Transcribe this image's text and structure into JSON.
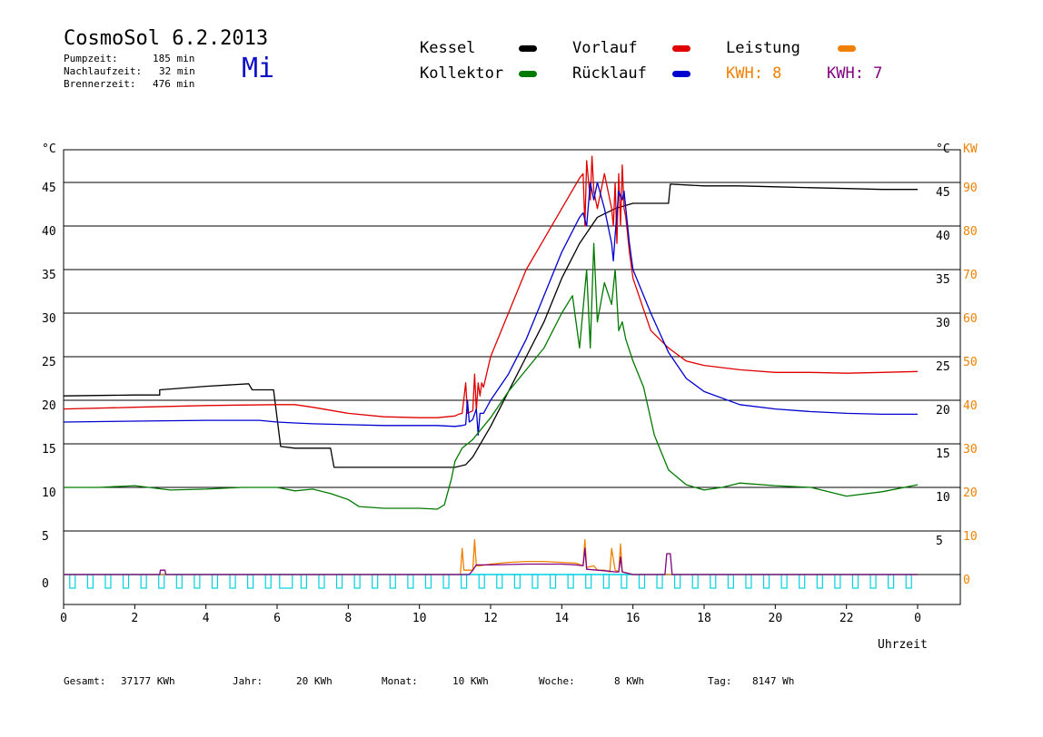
{
  "header": {
    "title": "CosmoSol 6.2.2013",
    "weekday": "Mi",
    "stats": [
      {
        "label": "Pumpzeit:",
        "value": "185 min"
      },
      {
        "label": "Nachlaufzeit:",
        "value": "32 min"
      },
      {
        "label": "Brennerzeit:",
        "value": "476 min"
      }
    ]
  },
  "legend": {
    "items": [
      {
        "label": "Kessel",
        "color": "#000000"
      },
      {
        "label": "Kollektor",
        "color": "#007a00"
      },
      {
        "label": "Vorlauf",
        "color": "#e00000"
      },
      {
        "label": "Rücklauf",
        "color": "#0000d0"
      },
      {
        "label": "Leistung",
        "color": "#f08000"
      }
    ],
    "kwh": [
      {
        "text": "KWH: 8",
        "color": "#f08000"
      },
      {
        "text": "KWH: 7",
        "color": "#800080"
      }
    ]
  },
  "footer": [
    {
      "label": "Gesamt:",
      "value": "37177 KWh"
    },
    {
      "label": "Jahr:",
      "value": "20 KWh"
    },
    {
      "label": "Monat:",
      "value": "10 KWh"
    },
    {
      "label": "Woche:",
      "value": "8 KWh"
    },
    {
      "label": "Tag:",
      "value": "8147 Wh"
    }
  ],
  "chart_data": {
    "type": "line",
    "xlabel": "Uhrzeit",
    "ylabel_left": "°C",
    "ylabel_right": [
      "°C",
      "KW"
    ],
    "xlim": [
      0,
      24
    ],
    "ylim": [
      -3.5,
      49
    ],
    "x_ticks": [
      "0",
      "2",
      "4",
      "6",
      "8",
      "10",
      "12",
      "14",
      "16",
      "18",
      "20",
      "22",
      "0"
    ],
    "y_ticks_left": [
      0,
      5,
      10,
      15,
      20,
      25,
      30,
      35,
      40,
      45
    ],
    "y_ticks_right_c": [
      5,
      10,
      15,
      20,
      25,
      30,
      35,
      40,
      45
    ],
    "y_ticks_right_kw": [
      0,
      10,
      20,
      30,
      40,
      50,
      60,
      70,
      80,
      90
    ],
    "grid": true,
    "series": [
      {
        "name": "Kessel",
        "color": "#000000",
        "x": [
          0,
          2,
          2.7,
          2.7,
          4,
          5.2,
          5.3,
          5.9,
          6.1,
          6.5,
          7.5,
          7.6,
          8,
          9,
          10,
          10.5,
          11,
          11.3,
          11.5,
          12,
          12.5,
          13,
          13.5,
          14,
          14.5,
          15,
          15.5,
          16,
          17,
          17.05,
          18,
          19,
          20,
          21,
          22,
          23,
          24
        ],
        "y": [
          20.5,
          20.6,
          20.6,
          21.2,
          21.6,
          21.9,
          21.2,
          21.2,
          14.7,
          14.5,
          14.5,
          12.3,
          12.3,
          12.3,
          12.3,
          12.3,
          12.3,
          12.6,
          13.5,
          17,
          21,
          25,
          29,
          34,
          38,
          41,
          42,
          42.6,
          42.6,
          44.8,
          44.6,
          44.6,
          44.5,
          44.4,
          44.3,
          44.2,
          44.2
        ]
      },
      {
        "name": "Vorlauf",
        "color": "#e00000",
        "x": [
          0,
          2,
          4,
          6,
          6.5,
          7,
          8,
          9,
          10,
          10.5,
          11,
          11.1,
          11.2,
          11.3,
          11.35,
          11.4,
          11.5,
          11.55,
          11.6,
          11.65,
          11.7,
          11.75,
          11.8,
          12,
          12.5,
          13,
          13.5,
          14,
          14.5,
          14.6,
          14.65,
          14.7,
          14.8,
          14.85,
          14.9,
          15,
          15.2,
          15.4,
          15.45,
          15.5,
          15.55,
          15.6,
          15.65,
          15.7,
          15.75,
          15.8,
          15.9,
          16,
          16.5,
          17,
          17.5,
          18,
          19,
          20,
          21,
          22,
          23,
          24
        ],
        "y": [
          19,
          19.2,
          19.4,
          19.5,
          19.5,
          19.2,
          18.5,
          18.1,
          18,
          18,
          18.2,
          18.4,
          18.5,
          22,
          18.5,
          18.6,
          18.8,
          23,
          18.8,
          22,
          20.5,
          22,
          21.5,
          25,
          30,
          35,
          38.5,
          42,
          45.5,
          46,
          40,
          47.5,
          43,
          48,
          44,
          42,
          46,
          42,
          40,
          45,
          38,
          46,
          40,
          47,
          42,
          41,
          37,
          34,
          28,
          26,
          24.5,
          24,
          23.5,
          23.2,
          23.2,
          23.1,
          23.2,
          23.3
        ]
      },
      {
        "name": "Rücklauf",
        "color": "#0000d0",
        "x": [
          0,
          2,
          4,
          5.5,
          6,
          6.5,
          7,
          8,
          9,
          10,
          10.5,
          11,
          11.2,
          11.3,
          11.35,
          11.4,
          11.5,
          11.6,
          11.65,
          11.7,
          11.8,
          12,
          12.5,
          13,
          13.5,
          14,
          14.5,
          14.6,
          14.7,
          14.8,
          14.9,
          15,
          15.2,
          15.4,
          15.45,
          15.5,
          15.6,
          15.7,
          15.75,
          15.8,
          15.9,
          16,
          16.5,
          17,
          17.5,
          18,
          19,
          20,
          21,
          22,
          23,
          24
        ],
        "y": [
          17.5,
          17.6,
          17.7,
          17.7,
          17.5,
          17.4,
          17.3,
          17.2,
          17.1,
          17.1,
          17.1,
          17,
          17.1,
          17.2,
          20,
          17.5,
          17.8,
          19,
          16,
          18.5,
          18.5,
          20,
          23,
          27,
          32,
          37,
          41,
          41.5,
          40,
          45,
          43,
          45,
          42,
          38,
          36,
          39,
          44,
          43,
          44,
          42,
          38,
          35,
          30,
          25.5,
          22.5,
          21,
          19.5,
          19,
          18.7,
          18.5,
          18.4,
          18.4
        ]
      },
      {
        "name": "Kollektor",
        "color": "#007a00",
        "x": [
          0,
          1,
          2,
          3,
          4,
          5,
          6,
          6.5,
          7,
          7.5,
          8,
          8.3,
          9,
          10,
          10.5,
          10.7,
          10.9,
          11,
          11.2,
          11.5,
          12,
          12.5,
          13,
          13.5,
          14,
          14.3,
          14.5,
          14.7,
          14.8,
          14.9,
          15,
          15.2,
          15.4,
          15.5,
          15.6,
          15.7,
          15.8,
          16,
          16.3,
          16.6,
          17,
          17.5,
          18,
          18.5,
          19,
          20,
          21,
          22,
          23,
          24
        ],
        "y": [
          10,
          10,
          10.2,
          9.7,
          9.8,
          10,
          10,
          9.6,
          9.8,
          9.3,
          8.6,
          7.8,
          7.6,
          7.6,
          7.5,
          8,
          11,
          13,
          14.5,
          15.5,
          18,
          21,
          23.5,
          26,
          30,
          32,
          26,
          35,
          26,
          38,
          29,
          33.5,
          31,
          35,
          28,
          29,
          27,
          24.5,
          21.5,
          16,
          12,
          10.3,
          9.7,
          10,
          10.5,
          10.2,
          10,
          9,
          9.5,
          10.3
        ]
      },
      {
        "name": "Leistung",
        "color": "#f08000",
        "x": [
          0,
          11.15,
          11.2,
          11.25,
          11.5,
          11.55,
          11.6,
          11.7,
          12,
          12.5,
          13,
          13.5,
          14,
          14.4,
          14.6,
          14.65,
          14.7,
          14.9,
          15,
          15.2,
          15.35,
          15.4,
          15.5,
          15.6,
          15.65,
          15.7,
          15.8,
          16,
          17,
          24
        ],
        "y": [
          0,
          0,
          3,
          0.5,
          0.5,
          4,
          1,
          1,
          1.2,
          1.4,
          1.5,
          1.5,
          1.4,
          1.3,
          1,
          4,
          0.8,
          1,
          0.5,
          0.5,
          0.3,
          3,
          0.5,
          0.3,
          3.5,
          0.3,
          0.2,
          0,
          0,
          0
        ]
      },
      {
        "name": "KWH 7",
        "color": "#800080",
        "x": [
          0,
          2.7,
          2.72,
          2.85,
          2.87,
          11.4,
          11.5,
          11.6,
          12,
          13,
          14,
          14.4,
          14.6,
          14.65,
          14.7,
          15,
          15.3,
          15.5,
          15.6,
          15.65,
          15.7,
          16,
          16.9,
          16.95,
          17.05,
          17.1,
          24
        ],
        "y": [
          0,
          0,
          0.5,
          0.5,
          0,
          0,
          0.5,
          1.1,
          1.1,
          1.2,
          1.2,
          1.1,
          1,
          3,
          0.6,
          0.5,
          0.4,
          0.3,
          0.3,
          2,
          0.3,
          0,
          0,
          2.4,
          2.4,
          0,
          0
        ]
      }
    ],
    "pump_markers": {
      "color": "#00d0e0",
      "text": "pump cycles along the bottom"
    }
  }
}
